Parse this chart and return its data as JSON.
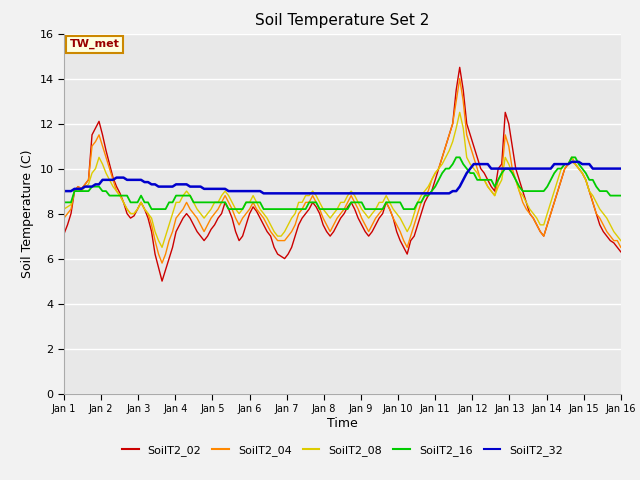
{
  "title": "Soil Temperature Set 2",
  "xlabel": "Time",
  "ylabel": "Soil Temperature (C)",
  "ylim": [
    0,
    16
  ],
  "yticks": [
    0,
    2,
    4,
    6,
    8,
    10,
    12,
    14,
    16
  ],
  "annotation_text": "TW_met",
  "bg_color": "#e8e8e8",
  "fig_bg_color": "#f0f0f0",
  "line_colors": {
    "SoilT2_02": "#cc0000",
    "SoilT2_04": "#ff8800",
    "SoilT2_08": "#ddcc00",
    "SoilT2_16": "#00cc00",
    "SoilT2_32": "#0000cc"
  },
  "line_widths": {
    "SoilT2_02": 1.0,
    "SoilT2_04": 1.0,
    "SoilT2_08": 1.0,
    "SoilT2_16": 1.3,
    "SoilT2_32": 1.8
  },
  "x_tick_labels": [
    "Jan 1",
    "Jan 2",
    "Jan 3",
    "Jan 4",
    "Jan 5",
    "Jan 6",
    "Jan 7",
    "Jan 8",
    "Jan 9",
    "Jan 10",
    "Jan 11",
    "Jan 12",
    "Jan 13",
    "Jan 14",
    "Jan 15",
    "Jan 16"
  ],
  "SoilT2_02": [
    7.1,
    7.5,
    8.0,
    9.0,
    9.2,
    9.1,
    9.3,
    9.5,
    11.5,
    11.8,
    12.1,
    11.5,
    10.8,
    10.2,
    9.6,
    9.2,
    8.9,
    8.5,
    8.0,
    7.8,
    7.9,
    8.2,
    8.5,
    8.2,
    7.8,
    7.2,
    6.2,
    5.6,
    5.0,
    5.5,
    6.0,
    6.5,
    7.2,
    7.5,
    7.8,
    8.0,
    7.8,
    7.5,
    7.2,
    7.0,
    6.8,
    7.0,
    7.3,
    7.5,
    7.8,
    8.0,
    8.5,
    8.2,
    7.8,
    7.2,
    6.8,
    7.0,
    7.5,
    8.0,
    8.3,
    8.1,
    7.8,
    7.5,
    7.2,
    7.0,
    6.5,
    6.2,
    6.1,
    6.0,
    6.2,
    6.5,
    7.0,
    7.5,
    7.8,
    8.0,
    8.2,
    8.5,
    8.3,
    8.0,
    7.5,
    7.2,
    7.0,
    7.2,
    7.5,
    7.8,
    8.0,
    8.3,
    8.5,
    8.2,
    7.8,
    7.5,
    7.2,
    7.0,
    7.2,
    7.5,
    7.8,
    8.0,
    8.5,
    8.2,
    7.8,
    7.2,
    6.8,
    6.5,
    6.2,
    6.8,
    7.0,
    7.5,
    8.0,
    8.5,
    8.8,
    9.0,
    9.5,
    10.0,
    10.5,
    11.0,
    11.5,
    12.0,
    13.5,
    14.5,
    13.5,
    12.0,
    11.5,
    11.0,
    10.5,
    10.0,
    9.8,
    9.5,
    9.2,
    9.0,
    10.0,
    10.2,
    12.5,
    12.0,
    11.0,
    10.0,
    9.5,
    9.0,
    8.5,
    8.0,
    7.8,
    7.5,
    7.2,
    7.0,
    7.5,
    8.0,
    8.5,
    9.0,
    9.5,
    10.0,
    10.2,
    10.5,
    10.2,
    10.0,
    9.8,
    9.5,
    9.0,
    8.5,
    8.0,
    7.5,
    7.2,
    7.0,
    6.8,
    6.7,
    6.5,
    6.3
  ],
  "SoilT2_04": [
    7.8,
    8.0,
    8.2,
    9.0,
    9.2,
    9.1,
    9.3,
    9.5,
    11.0,
    11.2,
    11.5,
    11.0,
    10.5,
    10.0,
    9.5,
    9.0,
    8.8,
    8.5,
    8.2,
    8.0,
    8.0,
    8.2,
    8.5,
    8.2,
    8.0,
    7.5,
    6.8,
    6.2,
    5.8,
    6.2,
    6.8,
    7.2,
    7.8,
    8.0,
    8.2,
    8.5,
    8.2,
    8.0,
    7.8,
    7.5,
    7.2,
    7.5,
    7.8,
    8.0,
    8.2,
    8.5,
    8.8,
    8.5,
    8.2,
    7.8,
    7.5,
    7.8,
    8.0,
    8.2,
    8.5,
    8.2,
    8.0,
    7.8,
    7.5,
    7.2,
    7.0,
    6.8,
    6.8,
    6.8,
    7.0,
    7.2,
    7.5,
    8.0,
    8.2,
    8.5,
    8.5,
    8.8,
    8.5,
    8.2,
    7.8,
    7.5,
    7.2,
    7.5,
    7.8,
    8.0,
    8.2,
    8.5,
    8.8,
    8.5,
    8.2,
    7.8,
    7.5,
    7.2,
    7.5,
    7.8,
    8.0,
    8.2,
    8.5,
    8.2,
    7.8,
    7.5,
    7.2,
    6.8,
    6.5,
    7.0,
    7.5,
    8.0,
    8.5,
    8.8,
    9.0,
    9.5,
    9.8,
    10.0,
    10.5,
    11.0,
    11.5,
    12.0,
    13.0,
    14.0,
    13.0,
    11.5,
    11.0,
    10.5,
    10.0,
    9.5,
    9.5,
    9.2,
    9.0,
    8.8,
    9.5,
    9.8,
    11.5,
    11.0,
    10.0,
    9.5,
    9.0,
    8.5,
    8.2,
    8.0,
    7.8,
    7.5,
    7.2,
    7.0,
    7.5,
    8.0,
    8.5,
    9.0,
    9.5,
    10.0,
    10.2,
    10.3,
    10.2,
    10.0,
    9.8,
    9.5,
    9.0,
    8.5,
    8.0,
    7.8,
    7.5,
    7.2,
    7.0,
    6.8,
    6.8,
    6.5
  ],
  "SoilT2_08": [
    8.2,
    8.3,
    8.4,
    9.0,
    9.1,
    9.0,
    9.2,
    9.3,
    9.8,
    10.0,
    10.5,
    10.2,
    9.8,
    9.5,
    9.2,
    9.0,
    8.8,
    8.5,
    8.2,
    8.0,
    8.0,
    8.2,
    8.5,
    8.2,
    8.0,
    7.8,
    7.2,
    6.8,
    6.5,
    7.0,
    7.5,
    8.0,
    8.5,
    8.5,
    8.8,
    9.0,
    8.8,
    8.5,
    8.2,
    8.0,
    7.8,
    8.0,
    8.2,
    8.5,
    8.5,
    8.8,
    9.0,
    8.8,
    8.5,
    8.2,
    8.0,
    8.2,
    8.5,
    8.5,
    8.8,
    8.5,
    8.2,
    8.0,
    7.8,
    7.5,
    7.2,
    7.0,
    7.0,
    7.2,
    7.5,
    7.8,
    8.0,
    8.5,
    8.5,
    8.8,
    8.8,
    9.0,
    8.8,
    8.5,
    8.2,
    8.0,
    7.8,
    8.0,
    8.2,
    8.5,
    8.5,
    8.8,
    9.0,
    8.8,
    8.5,
    8.2,
    8.0,
    7.8,
    8.0,
    8.2,
    8.5,
    8.5,
    8.8,
    8.5,
    8.2,
    8.0,
    7.8,
    7.5,
    7.2,
    7.5,
    8.0,
    8.5,
    8.8,
    9.0,
    9.2,
    9.5,
    9.8,
    10.0,
    10.2,
    10.5,
    10.8,
    11.2,
    11.8,
    12.5,
    11.8,
    10.5,
    10.2,
    10.0,
    9.8,
    9.5,
    9.5,
    9.2,
    9.0,
    8.8,
    9.2,
    9.5,
    10.5,
    10.2,
    9.8,
    9.5,
    9.0,
    8.8,
    8.5,
    8.2,
    8.0,
    7.8,
    7.5,
    7.5,
    8.0,
    8.5,
    9.0,
    9.5,
    10.0,
    10.2,
    10.2,
    10.5,
    10.2,
    10.0,
    9.8,
    9.5,
    9.0,
    8.8,
    8.5,
    8.2,
    8.0,
    7.8,
    7.5,
    7.2,
    7.0,
    6.8
  ],
  "SoilT2_16": [
    8.5,
    8.5,
    8.5,
    9.0,
    9.0,
    9.0,
    9.0,
    9.0,
    9.2,
    9.2,
    9.2,
    9.0,
    9.0,
    8.8,
    8.8,
    8.8,
    8.8,
    8.8,
    8.8,
    8.5,
    8.5,
    8.5,
    8.8,
    8.5,
    8.5,
    8.2,
    8.2,
    8.2,
    8.2,
    8.2,
    8.5,
    8.5,
    8.8,
    8.8,
    8.8,
    8.8,
    8.8,
    8.5,
    8.5,
    8.5,
    8.5,
    8.5,
    8.5,
    8.5,
    8.5,
    8.5,
    8.5,
    8.2,
    8.2,
    8.2,
    8.2,
    8.2,
    8.5,
    8.5,
    8.5,
    8.5,
    8.5,
    8.2,
    8.2,
    8.2,
    8.2,
    8.2,
    8.2,
    8.2,
    8.2,
    8.2,
    8.2,
    8.2,
    8.2,
    8.2,
    8.5,
    8.5,
    8.5,
    8.2,
    8.2,
    8.2,
    8.2,
    8.2,
    8.2,
    8.2,
    8.2,
    8.2,
    8.5,
    8.5,
    8.5,
    8.5,
    8.2,
    8.2,
    8.2,
    8.2,
    8.2,
    8.2,
    8.5,
    8.5,
    8.5,
    8.5,
    8.5,
    8.2,
    8.2,
    8.2,
    8.2,
    8.5,
    8.5,
    8.8,
    8.8,
    9.0,
    9.2,
    9.5,
    9.8,
    10.0,
    10.0,
    10.2,
    10.5,
    10.5,
    10.2,
    10.0,
    9.8,
    9.8,
    9.5,
    9.5,
    9.5,
    9.5,
    9.5,
    9.2,
    9.5,
    9.8,
    10.0,
    10.0,
    9.8,
    9.5,
    9.2,
    9.0,
    9.0,
    9.0,
    9.0,
    9.0,
    9.0,
    9.0,
    9.2,
    9.5,
    9.8,
    10.0,
    10.0,
    10.2,
    10.2,
    10.5,
    10.5,
    10.2,
    10.0,
    9.8,
    9.5,
    9.5,
    9.2,
    9.0,
    9.0,
    9.0,
    8.8,
    8.8,
    8.8,
    8.8
  ],
  "SoilT2_32": [
    9.0,
    9.0,
    9.0,
    9.1,
    9.1,
    9.1,
    9.2,
    9.2,
    9.2,
    9.3,
    9.3,
    9.5,
    9.5,
    9.5,
    9.5,
    9.6,
    9.6,
    9.6,
    9.5,
    9.5,
    9.5,
    9.5,
    9.5,
    9.4,
    9.4,
    9.3,
    9.3,
    9.2,
    9.2,
    9.2,
    9.2,
    9.2,
    9.3,
    9.3,
    9.3,
    9.3,
    9.2,
    9.2,
    9.2,
    9.2,
    9.1,
    9.1,
    9.1,
    9.1,
    9.1,
    9.1,
    9.1,
    9.0,
    9.0,
    9.0,
    9.0,
    9.0,
    9.0,
    9.0,
    9.0,
    9.0,
    9.0,
    8.9,
    8.9,
    8.9,
    8.9,
    8.9,
    8.9,
    8.9,
    8.9,
    8.9,
    8.9,
    8.9,
    8.9,
    8.9,
    8.9,
    8.9,
    8.9,
    8.9,
    8.9,
    8.9,
    8.9,
    8.9,
    8.9,
    8.9,
    8.9,
    8.9,
    8.9,
    8.9,
    8.9,
    8.9,
    8.9,
    8.9,
    8.9,
    8.9,
    8.9,
    8.9,
    8.9,
    8.9,
    8.9,
    8.9,
    8.9,
    8.9,
    8.9,
    8.9,
    8.9,
    8.9,
    8.9,
    8.9,
    8.9,
    8.9,
    8.9,
    8.9,
    8.9,
    8.9,
    8.9,
    9.0,
    9.0,
    9.2,
    9.5,
    9.8,
    10.0,
    10.2,
    10.2,
    10.2,
    10.2,
    10.2,
    10.0,
    10.0,
    10.0,
    10.0,
    10.0,
    10.0,
    10.0,
    10.0,
    10.0,
    10.0,
    10.0,
    10.0,
    10.0,
    10.0,
    10.0,
    10.0,
    10.0,
    10.0,
    10.2,
    10.2,
    10.2,
    10.2,
    10.2,
    10.3,
    10.3,
    10.3,
    10.2,
    10.2,
    10.2,
    10.0,
    10.0,
    10.0,
    10.0,
    10.0,
    10.0,
    10.0,
    10.0,
    10.0
  ]
}
